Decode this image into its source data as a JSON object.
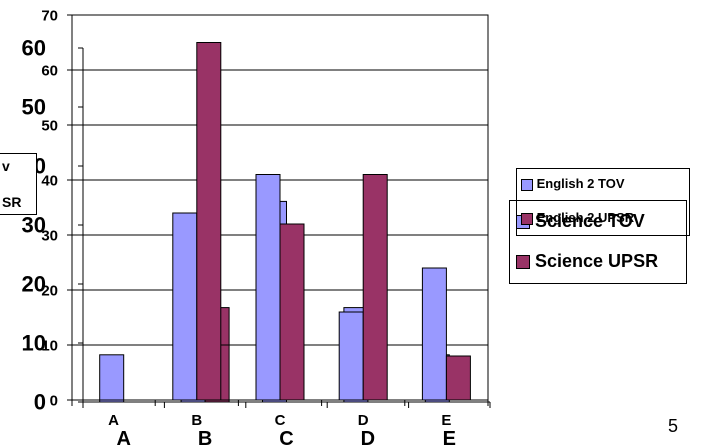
{
  "chart_data": [
    {
      "type": "bar",
      "categories": [
        "A",
        "B",
        "C",
        "D",
        "E"
      ],
      "series": [
        {
          "name": "English 2 TOV",
          "values": [
            0,
            34,
            41,
            16,
            24
          ],
          "color": "#9999ff"
        },
        {
          "name": "English 2 UPSR",
          "values": [
            0,
            65,
            32,
            41,
            8
          ],
          "color": "#993366"
        }
      ],
      "ylim": [
        0,
        70
      ],
      "yticks": [
        0,
        10,
        20,
        30,
        40,
        50,
        60,
        70
      ],
      "grid": true,
      "legend": "right"
    },
    {
      "type": "bar",
      "categories": [
        "A",
        "B",
        "C",
        "D",
        "E"
      ],
      "series": [
        {
          "name": "Science TOV",
          "values": [
            8,
            16,
            34,
            16,
            8
          ],
          "color": "#9999ff"
        },
        {
          "name": "Science UPSR",
          "values": [
            0,
            16,
            0,
            0,
            0
          ],
          "color": "#993366"
        }
      ],
      "ylim": [
        0,
        60
      ],
      "yticks": [
        0,
        10,
        20,
        30,
        40,
        50,
        60
      ],
      "legend": "right"
    }
  ],
  "slide_number": "5",
  "stray_labels": [
    "v",
    "SR"
  ]
}
